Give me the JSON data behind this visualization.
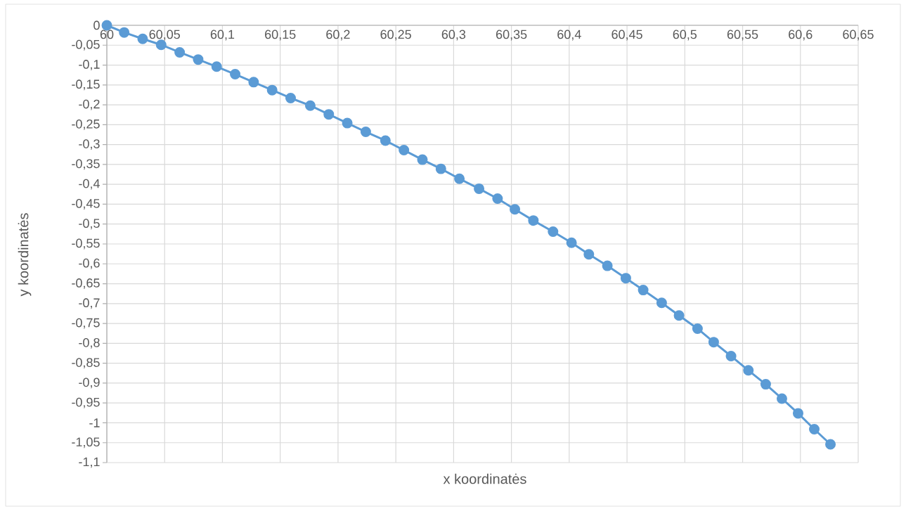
{
  "chart_data": {
    "type": "line",
    "xlabel": "x koordinatės",
    "ylabel": "y koordinatės",
    "x": [
      60,
      60.015,
      60.031,
      60.047,
      60.063,
      60.079,
      60.095,
      60.111,
      60.127,
      60.143,
      60.159,
      60.176,
      60.192,
      60.208,
      60.224,
      60.241,
      60.257,
      60.273,
      60.289,
      60.305,
      60.322,
      60.338,
      60.353,
      60.369,
      60.386,
      60.402,
      60.417,
      60.433,
      60.449,
      60.464,
      60.48,
      60.495,
      60.511,
      60.525,
      60.54,
      60.555,
      60.57,
      60.584,
      60.598,
      60.612,
      60.626
    ],
    "values": [
      0,
      -0.018,
      -0.034,
      -0.049,
      -0.068,
      -0.086,
      -0.104,
      -0.123,
      -0.143,
      -0.163,
      -0.183,
      -0.202,
      -0.224,
      -0.246,
      -0.268,
      -0.29,
      -0.314,
      -0.338,
      -0.361,
      -0.386,
      -0.411,
      -0.436,
      -0.463,
      -0.491,
      -0.519,
      -0.547,
      -0.576,
      -0.605,
      -0.636,
      -0.666,
      -0.698,
      -0.73,
      -0.763,
      -0.797,
      -0.832,
      -0.868,
      -0.903,
      -0.939,
      -0.976,
      -1.016,
      -1.054
    ],
    "color": "#5b9bd5",
    "marker": "circle",
    "grid": true,
    "xlim": [
      60,
      60.65
    ],
    "ylim": [
      -1.1,
      0
    ],
    "xticks": [
      60,
      {
        "value": 60.05,
        "label": "60,05"
      },
      {
        "value": 60.1,
        "label": "60,1"
      },
      {
        "value": 60.15,
        "label": "60,15"
      },
      {
        "value": 60.2,
        "label": "60,2"
      },
      {
        "value": 60.25,
        "label": "60,25"
      },
      {
        "value": 60.3,
        "label": "60,3"
      },
      {
        "value": 60.35,
        "label": "60,35"
      },
      {
        "value": 60.4,
        "label": "60,4"
      },
      {
        "value": 60.45,
        "label": "60,45"
      },
      {
        "value": 60.5,
        "label": "60,5"
      },
      {
        "value": 60.55,
        "label": "60,55"
      },
      {
        "value": 60.6,
        "label": "60,6"
      },
      {
        "value": 60.65,
        "label": "60,65"
      }
    ],
    "yticks": [
      0,
      {
        "value": -0.05,
        "label": "-0,05"
      },
      {
        "value": -0.1,
        "label": "-0,1"
      },
      {
        "value": -0.15,
        "label": "-0,15"
      },
      {
        "value": -0.2,
        "label": "-0,2"
      },
      {
        "value": -0.25,
        "label": "-0,25"
      },
      {
        "value": -0.3,
        "label": "-0,3"
      },
      {
        "value": -0.35,
        "label": "-0,35"
      },
      {
        "value": -0.4,
        "label": "-0,4"
      },
      {
        "value": -0.45,
        "label": "-0,45"
      },
      {
        "value": -0.5,
        "label": "-0,5"
      },
      {
        "value": -0.55,
        "label": "-0,55"
      },
      {
        "value": -0.6,
        "label": "-0,6"
      },
      {
        "value": -0.65,
        "label": "-0,65"
      },
      {
        "value": -0.7,
        "label": "-0,7"
      },
      {
        "value": -0.75,
        "label": "-0,75"
      },
      {
        "value": -0.8,
        "label": "-0,8"
      },
      {
        "value": -0.85,
        "label": "-0,85"
      },
      {
        "value": -0.9,
        "label": "-0,9"
      },
      {
        "value": -0.95,
        "label": "-0,95"
      },
      {
        "value": -1,
        "label": "-1"
      },
      {
        "value": -1.05,
        "label": "-1,05"
      },
      {
        "value": -1.1,
        "label": "-1,1"
      }
    ]
  }
}
